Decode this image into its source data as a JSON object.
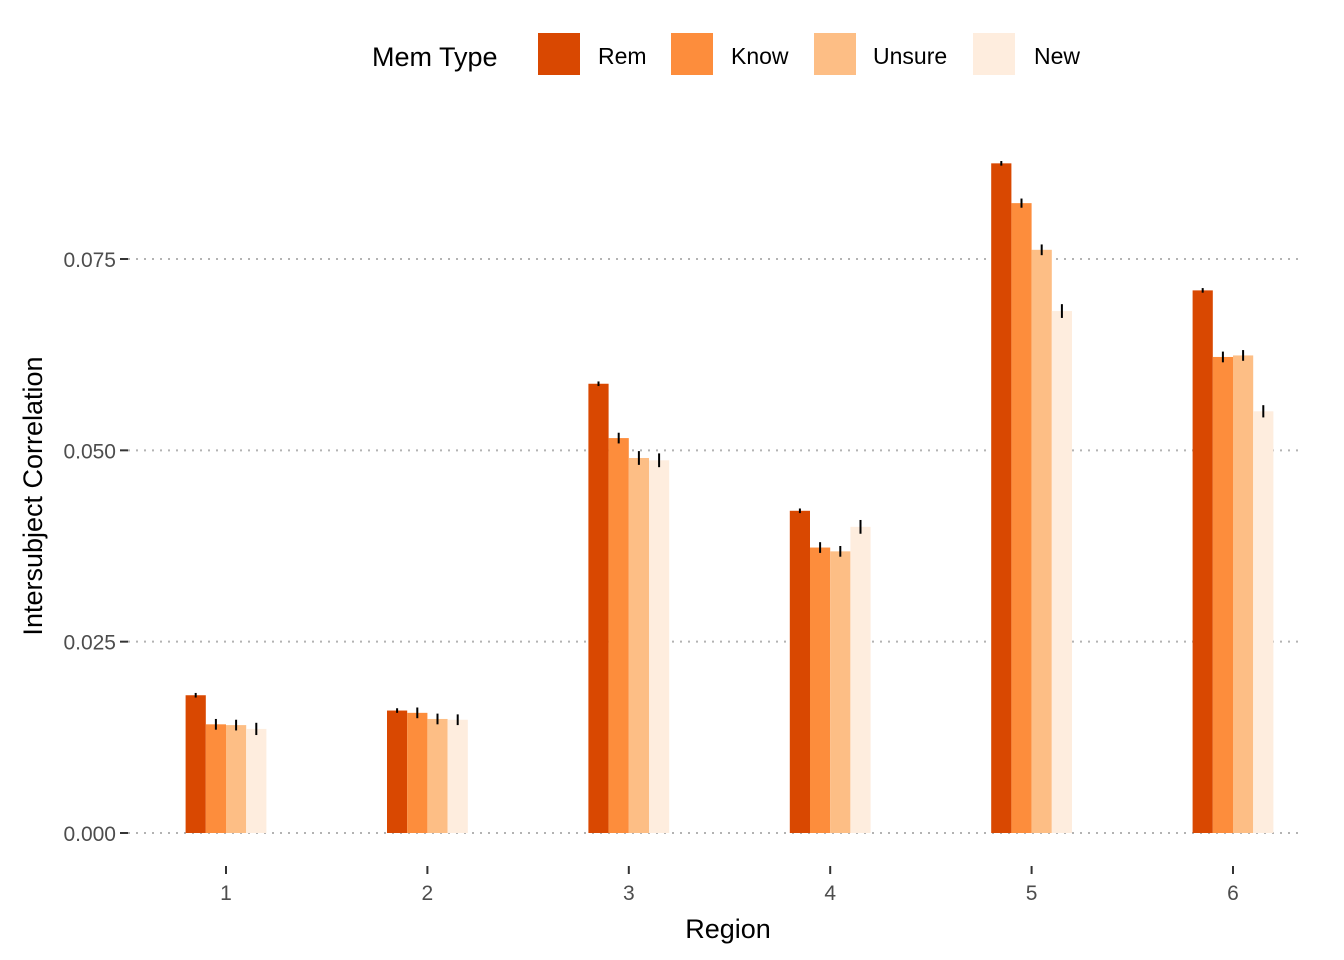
{
  "chart_data": {
    "type": "bar",
    "title": "",
    "xlabel": "Region",
    "ylabel": "Intersubject Correlation",
    "categories": [
      "1",
      "2",
      "3",
      "4",
      "5",
      "6"
    ],
    "yticks": [
      "0.000",
      "0.025",
      "0.050",
      "0.075"
    ],
    "ytick_values": [
      0,
      0.025,
      0.05,
      0.075
    ],
    "ylim": [
      0,
      0.09
    ],
    "grid": "horizontal-dotted",
    "legend": {
      "title": "Mem Type",
      "position": "top"
    },
    "series": [
      {
        "name": "Rem",
        "color": "#D94801",
        "values": [
          0.018,
          0.016,
          0.0587,
          0.0421,
          0.0875,
          0.0709
        ],
        "errors": [
          0.0003,
          0.0003,
          0.0003,
          0.0003,
          0.0003,
          0.0003
        ]
      },
      {
        "name": "Know",
        "color": "#FD8D3C",
        "values": [
          0.0142,
          0.0157,
          0.0516,
          0.0373,
          0.0823,
          0.0622
        ],
        "errors": [
          0.0007,
          0.0007,
          0.0007,
          0.0007,
          0.0006,
          0.0007
        ]
      },
      {
        "name": "Unsure",
        "color": "#FDBE85",
        "values": [
          0.0141,
          0.0149,
          0.049,
          0.0368,
          0.0762,
          0.0624
        ],
        "errors": [
          0.0007,
          0.0007,
          0.0009,
          0.0007,
          0.0007,
          0.0007
        ]
      },
      {
        "name": "New",
        "color": "#FEEDDE",
        "values": [
          0.0136,
          0.0148,
          0.0487,
          0.04,
          0.0682,
          0.0551
        ],
        "errors": [
          0.0008,
          0.0007,
          0.0009,
          0.0009,
          0.0009,
          0.0008
        ]
      }
    ]
  }
}
